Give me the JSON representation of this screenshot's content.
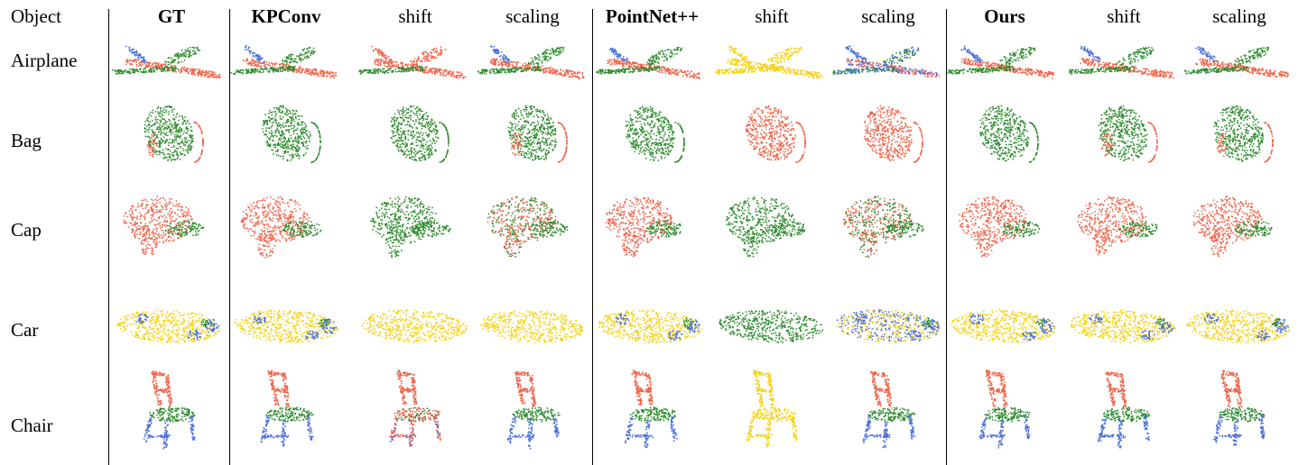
{
  "header": {
    "object_label": "Object",
    "columns": [
      {
        "label": "GT",
        "bold": true
      },
      {
        "label": "KPConv",
        "bold": true
      },
      {
        "label": "shift",
        "bold": false
      },
      {
        "label": "scaling",
        "bold": false
      },
      {
        "label": "PointNet++",
        "bold": true
      },
      {
        "label": "shift",
        "bold": false
      },
      {
        "label": "scaling",
        "bold": false
      },
      {
        "label": "Ours",
        "bold": true
      },
      {
        "label": "shift",
        "bold": false
      },
      {
        "label": "scaling",
        "bold": false
      }
    ]
  },
  "rows": [
    {
      "label": "Airplane",
      "shape": "airplane",
      "cells": [
        "normal",
        "normal",
        "part-red",
        "normal",
        "normal",
        "part-yellow",
        "mixed-blue",
        "normal",
        "normal",
        "normal"
      ]
    },
    {
      "label": "Bag",
      "shape": "bag",
      "cells": [
        "normal",
        "green",
        "green",
        "normal",
        "green",
        "red",
        "red",
        "green",
        "normal",
        "normal"
      ]
    },
    {
      "label": "Cap",
      "shape": "cap",
      "cells": [
        "normal",
        "normal",
        "green",
        "mixed-green",
        "normal",
        "green",
        "mixed-green",
        "normal",
        "normal",
        "normal"
      ]
    },
    {
      "label": "Car",
      "shape": "car",
      "cells": [
        "normal",
        "normal",
        "yellow",
        "yellow",
        "normal",
        "green",
        "mixed-blue",
        "normal",
        "normal",
        "normal"
      ]
    },
    {
      "label": "Chair",
      "shape": "chair",
      "cells": [
        "normal",
        "normal",
        "mixed-red",
        "normal",
        "normal",
        "yellow",
        "normal",
        "normal",
        "normal",
        "normal"
      ]
    }
  ],
  "colors": {
    "red": "#f0644b",
    "green": "#2e8b2e",
    "blue": "#4a6fd8",
    "yellow": "#f5d215"
  }
}
